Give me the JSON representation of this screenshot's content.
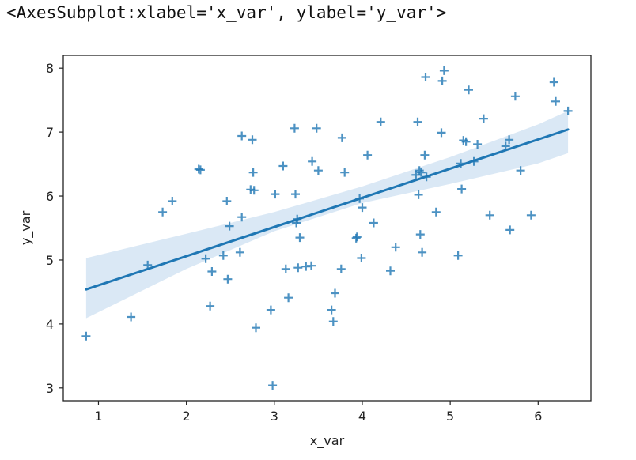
{
  "output_text": "<AxesSubplot:xlabel='x_var', ylabel='y_var'>",
  "chart_data": {
    "type": "scatter",
    "xlabel": "x_var",
    "ylabel": "y_var",
    "xlim": [
      0.6,
      6.6
    ],
    "ylim": [
      2.8,
      8.2
    ],
    "x_ticks": [
      1,
      2,
      3,
      4,
      5,
      6
    ],
    "y_ticks": [
      3,
      4,
      5,
      6,
      7,
      8
    ],
    "grid": false,
    "marker": "plus",
    "colors": {
      "points": "#1f77b4",
      "line": "#1f77b4",
      "band": "#c6dbef"
    },
    "points": [
      [
        0.86,
        3.81
      ],
      [
        1.37,
        4.11
      ],
      [
        1.56,
        4.92
      ],
      [
        1.73,
        5.75
      ],
      [
        1.84,
        5.92
      ],
      [
        2.14,
        6.42
      ],
      [
        2.16,
        6.41
      ],
      [
        2.22,
        5.02
      ],
      [
        2.27,
        4.28
      ],
      [
        2.29,
        4.82
      ],
      [
        2.42,
        5.07
      ],
      [
        2.46,
        5.92
      ],
      [
        2.47,
        4.7
      ],
      [
        2.49,
        5.53
      ],
      [
        2.61,
        5.12
      ],
      [
        2.63,
        5.67
      ],
      [
        2.63,
        6.94
      ],
      [
        2.73,
        6.1
      ],
      [
        2.75,
        6.88
      ],
      [
        2.76,
        6.37
      ],
      [
        2.77,
        6.09
      ],
      [
        2.79,
        3.94
      ],
      [
        2.96,
        4.22
      ],
      [
        2.98,
        3.04
      ],
      [
        3.01,
        6.03
      ],
      [
        3.1,
        6.47
      ],
      [
        3.13,
        4.86
      ],
      [
        3.16,
        4.41
      ],
      [
        3.23,
        7.06
      ],
      [
        3.24,
        6.03
      ],
      [
        3.25,
        5.58
      ],
      [
        3.26,
        5.64
      ],
      [
        3.27,
        4.88
      ],
      [
        3.29,
        5.35
      ],
      [
        3.36,
        4.9
      ],
      [
        3.42,
        4.91
      ],
      [
        3.43,
        6.54
      ],
      [
        3.48,
        7.06
      ],
      [
        3.5,
        6.4
      ],
      [
        3.65,
        4.22
      ],
      [
        3.67,
        4.04
      ],
      [
        3.69,
        4.48
      ],
      [
        3.76,
        4.86
      ],
      [
        3.77,
        6.91
      ],
      [
        3.8,
        6.37
      ],
      [
        3.93,
        5.34
      ],
      [
        3.94,
        5.36
      ],
      [
        3.97,
        5.96
      ],
      [
        3.99,
        5.03
      ],
      [
        4.0,
        5.82
      ],
      [
        4.06,
        6.64
      ],
      [
        4.13,
        5.58
      ],
      [
        4.21,
        7.16
      ],
      [
        4.32,
        4.83
      ],
      [
        4.38,
        5.2
      ],
      [
        4.61,
        6.33
      ],
      [
        4.63,
        7.16
      ],
      [
        4.64,
        6.02
      ],
      [
        4.65,
        6.4
      ],
      [
        4.66,
        5.4
      ],
      [
        4.67,
        6.37
      ],
      [
        4.68,
        5.12
      ],
      [
        4.71,
        6.64
      ],
      [
        4.72,
        7.86
      ],
      [
        4.73,
        6.3
      ],
      [
        4.84,
        5.75
      ],
      [
        4.9,
        6.99
      ],
      [
        4.91,
        7.8
      ],
      [
        4.93,
        7.96
      ],
      [
        5.09,
        5.07
      ],
      [
        5.12,
        6.51
      ],
      [
        5.13,
        6.11
      ],
      [
        5.15,
        6.87
      ],
      [
        5.18,
        6.85
      ],
      [
        5.21,
        7.66
      ],
      [
        5.27,
        6.54
      ],
      [
        5.31,
        6.81
      ],
      [
        5.38,
        7.21
      ],
      [
        5.45,
        5.7
      ],
      [
        5.63,
        6.78
      ],
      [
        5.67,
        6.88
      ],
      [
        5.68,
        5.47
      ],
      [
        5.74,
        7.56
      ],
      [
        5.8,
        6.4
      ],
      [
        5.92,
        5.7
      ],
      [
        6.18,
        7.78
      ],
      [
        6.2,
        7.48
      ],
      [
        6.34,
        7.33
      ]
    ],
    "regression": {
      "x": [
        0.86,
        6.34
      ],
      "y": [
        4.54,
        7.04
      ]
    },
    "confidence_band": {
      "x": [
        0.86,
        2.0,
        3.0,
        4.0,
        5.0,
        6.0,
        6.34
      ],
      "lower": [
        4.09,
        4.86,
        5.45,
        5.89,
        6.19,
        6.51,
        6.67
      ],
      "upper": [
        5.03,
        5.41,
        5.75,
        6.15,
        6.61,
        7.12,
        7.33
      ]
    }
  }
}
